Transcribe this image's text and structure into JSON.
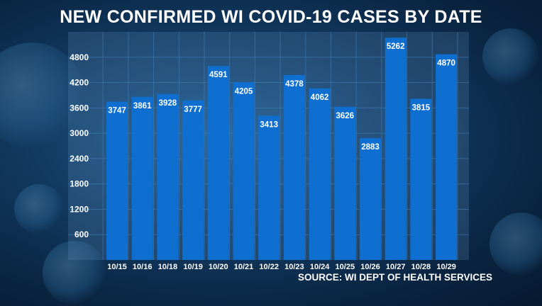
{
  "header": {
    "title": "NEW CONFIRMED WI COVID-19 CASES BY DATE"
  },
  "footer": {
    "source": "SOURCE: WI DEPT OF HEALTH SERVICES"
  },
  "colors": {
    "bar": "#0f6fd1",
    "text": "#ffffff",
    "grid": "#3f7fba"
  },
  "chart_data": {
    "type": "bar",
    "title": "NEW CONFIRMED WI COVID-19 CASES BY DATE",
    "xlabel": "",
    "ylabel": "",
    "categories": [
      "10/15",
      "10/16",
      "10/18",
      "10/19",
      "10/20",
      "10/21",
      "10/22",
      "10/23",
      "10/24",
      "10/25",
      "10/26",
      "10/27",
      "10/28",
      "10/29"
    ],
    "values": [
      3747,
      3861,
      3928,
      3777,
      4591,
      4205,
      3413,
      4378,
      4062,
      3626,
      2883,
      5262,
      3815,
      4870
    ],
    "yticks": [
      600,
      1200,
      1800,
      2400,
      3000,
      3600,
      4200,
      4800
    ],
    "ylim": [
      0,
      5400
    ],
    "grid": true,
    "data_labels": true
  }
}
